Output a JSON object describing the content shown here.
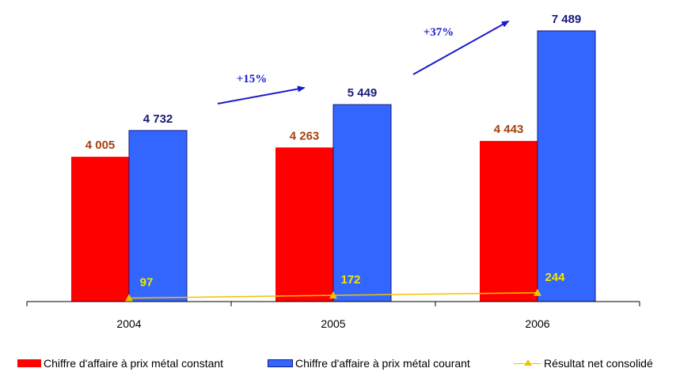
{
  "chart_data": {
    "type": "bar",
    "categories": [
      "2004",
      "2005",
      "2006"
    ],
    "series": [
      {
        "name": "Chiffre d'affaire à prix métal constant",
        "kind": "bar",
        "color": "#ff0000",
        "label_color": "#a5420f",
        "values": [
          4005,
          4263,
          4443
        ],
        "labels": [
          "4 005",
          "4 263",
          "4 443"
        ]
      },
      {
        "name": "Chiffre d'affaire à prix métal courant",
        "kind": "bar",
        "color": "#3366ff",
        "label_color": "#1a1a7a",
        "values": [
          4732,
          5449,
          7489
        ],
        "labels": [
          "4 732",
          "5 449",
          "7 489"
        ]
      },
      {
        "name": "Résultat net consolidé",
        "kind": "line",
        "color": "#f2c200",
        "label_color": "#f2e600",
        "values": [
          97,
          172,
          244
        ],
        "labels": [
          "97",
          "172",
          "244"
        ]
      }
    ],
    "annotations": [
      {
        "text": "+15%",
        "color": "#1a1acc"
      },
      {
        "text": "+37%",
        "color": "#1a1acc"
      }
    ],
    "ylim": [
      0,
      8000
    ],
    "grid": false,
    "legend_position": "bottom"
  }
}
